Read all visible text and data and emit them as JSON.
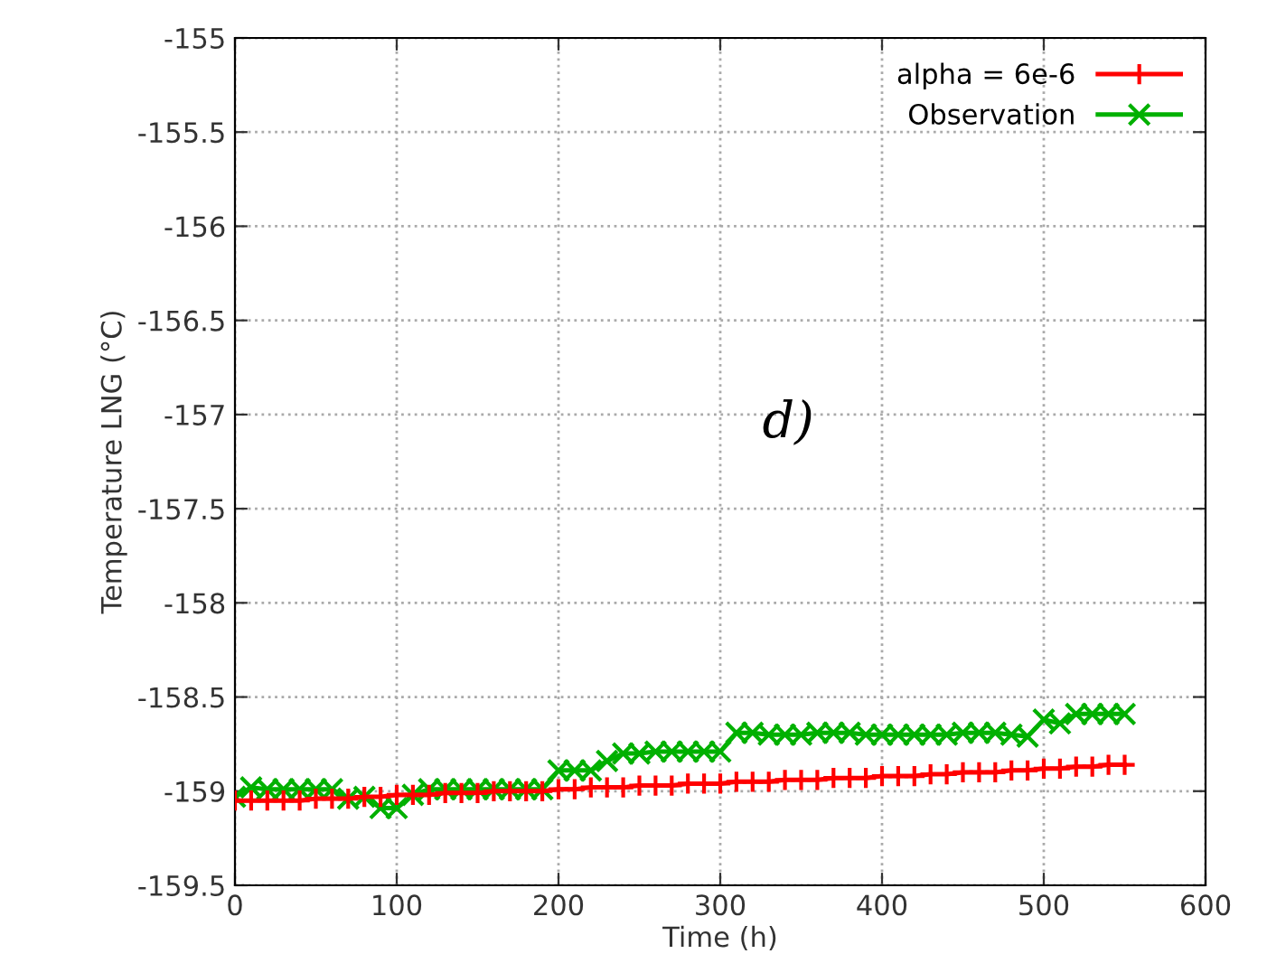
{
  "chart_data": {
    "type": "line",
    "xlabel": "Time (h)",
    "ylabel": "Temperature LNG (°C)",
    "annotations": [
      "d)"
    ],
    "xlim": [
      0,
      600
    ],
    "xticks": [
      0,
      100,
      200,
      300,
      400,
      500,
      600
    ],
    "ylim": [
      -159.5,
      -155
    ],
    "yticks": [
      -159.5,
      -159,
      -158.5,
      -158,
      -157.5,
      -157,
      -156.5,
      -156,
      -155.5,
      -155
    ],
    "grid": true,
    "legend": "top right",
    "line_style": "solid",
    "series": [
      {
        "name": "alpha = 6e-6",
        "color": "#ff0000",
        "marker": "cross",
        "x": [
          0,
          10,
          20,
          30,
          40,
          50,
          60,
          70,
          80,
          90,
          100,
          110,
          120,
          130,
          140,
          150,
          160,
          170,
          180,
          190,
          200,
          210,
          220,
          230,
          240,
          250,
          260,
          270,
          280,
          290,
          300,
          310,
          320,
          330,
          340,
          350,
          360,
          370,
          380,
          390,
          400,
          410,
          420,
          430,
          440,
          450,
          460,
          470,
          480,
          490,
          500,
          510,
          520,
          530,
          540,
          550
        ],
        "values": [
          -159.05,
          -159.05,
          -159.05,
          -159.05,
          -159.05,
          -159.04,
          -159.04,
          -159.04,
          -159.03,
          -159.03,
          -159.02,
          -159.02,
          -159.02,
          -159.01,
          -159.01,
          -159.01,
          -159.0,
          -159.0,
          -159.0,
          -159.0,
          -158.99,
          -158.99,
          -158.98,
          -158.98,
          -158.98,
          -158.97,
          -158.97,
          -158.97,
          -158.96,
          -158.96,
          -158.96,
          -158.95,
          -158.95,
          -158.95,
          -158.94,
          -158.94,
          -158.94,
          -158.93,
          -158.93,
          -158.93,
          -158.92,
          -158.92,
          -158.92,
          -158.91,
          -158.91,
          -158.9,
          -158.9,
          -158.9,
          -158.89,
          -158.89,
          -158.88,
          -158.88,
          -158.87,
          -158.87,
          -158.86,
          -158.86
        ]
      },
      {
        "name": "Observation",
        "color": "#00b000",
        "marker": "x",
        "x": [
          0,
          10,
          20,
          30,
          40,
          50,
          60,
          70,
          80,
          90,
          100,
          110,
          120,
          130,
          140,
          150,
          160,
          170,
          180,
          190,
          200,
          210,
          220,
          230,
          240,
          250,
          260,
          270,
          280,
          290,
          300,
          310,
          320,
          330,
          340,
          350,
          360,
          370,
          380,
          390,
          400,
          410,
          420,
          430,
          440,
          450,
          460,
          470,
          480,
          490,
          500,
          510,
          520,
          530,
          540,
          550
        ],
        "values": [
          -159.03,
          -158.98,
          -158.99,
          -158.99,
          -158.99,
          -158.99,
          -158.99,
          -159.04,
          -159.03,
          -159.09,
          -159.09,
          -159.02,
          -158.99,
          -158.99,
          -158.99,
          -158.99,
          -158.99,
          -158.99,
          -158.99,
          -158.99,
          -158.89,
          -158.89,
          -158.89,
          -158.84,
          -158.8,
          -158.8,
          -158.79,
          -158.79,
          -158.79,
          -158.79,
          -158.79,
          -158.69,
          -158.69,
          -158.7,
          -158.7,
          -158.7,
          -158.69,
          -158.69,
          -158.69,
          -158.7,
          -158.7,
          -158.7,
          -158.7,
          -158.7,
          -158.7,
          -158.69,
          -158.69,
          -158.69,
          -158.7,
          -158.71,
          -158.62,
          -158.64,
          -158.59,
          -158.59,
          -158.59,
          -158.59
        ]
      }
    ]
  }
}
